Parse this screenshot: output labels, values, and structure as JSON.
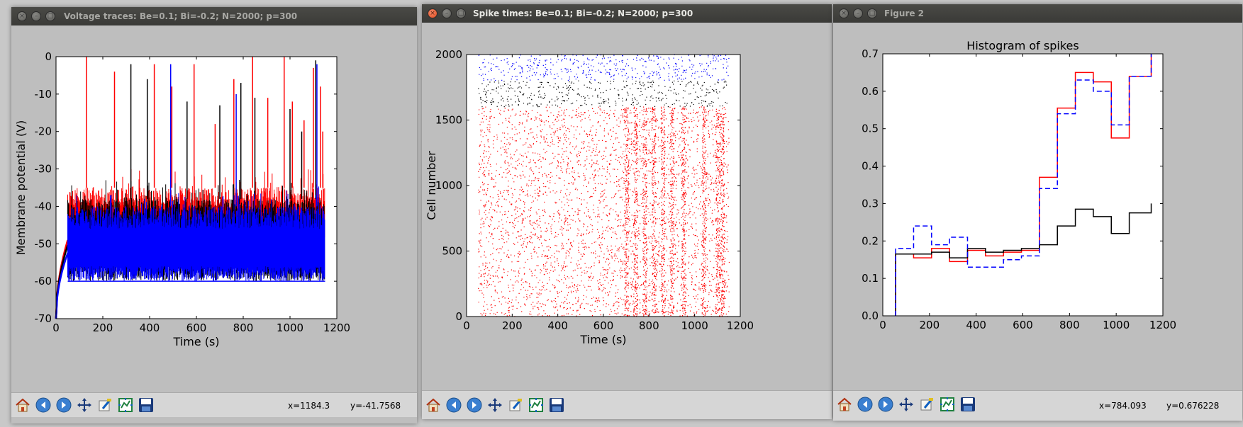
{
  "windows": [
    {
      "title": "Voltage traces: Be=0.1; Bi=-0.2; N=2000; p=300",
      "status": {
        "x": "x=1184.3",
        "y": "y=-41.7568"
      },
      "plot": {
        "title": "",
        "xlabel": "Time (s)",
        "ylabel": "Membrane potential (V)",
        "xticks": [
          "0",
          "200",
          "400",
          "600",
          "800",
          "1000",
          "1200"
        ],
        "yticks": [
          "0",
          "-10",
          "-20",
          "-30",
          "-40",
          "-50",
          "-60",
          "-70"
        ]
      }
    },
    {
      "title": "Spike times: Be=0.1; Bi=-0.2; N=2000; p=300",
      "status": {
        "x": "",
        "y": ""
      },
      "plot": {
        "title": "",
        "xlabel": "Time (s)",
        "ylabel": "Cell number",
        "xticks": [
          "0",
          "200",
          "400",
          "600",
          "800",
          "1000",
          "1200"
        ],
        "yticks": [
          "0",
          "500",
          "1000",
          "1500",
          "2000"
        ]
      }
    },
    {
      "title": "Figure 2",
      "status": {
        "x": "x=784.093",
        "y": "y=0.676228"
      },
      "plot": {
        "title": "Histogram of spikes",
        "xlabel": "",
        "ylabel": "",
        "xticks": [
          "0",
          "200",
          "400",
          "600",
          "800",
          "1000",
          "1200"
        ],
        "yticks": [
          "0.0",
          "0.1",
          "0.2",
          "0.3",
          "0.4",
          "0.5",
          "0.6",
          "0.7"
        ]
      }
    }
  ],
  "toolbar_icons": [
    "home-icon",
    "back-icon",
    "forward-icon",
    "pan-icon",
    "zoom-icon",
    "configure-subplots-icon",
    "save-icon"
  ],
  "colors": {
    "red": "#ff0000",
    "black": "#000000",
    "blue": "#0000ff",
    "titlebar": "#3c3c3a",
    "window_bg": "#bebebe"
  },
  "chart_data": [
    {
      "type": "line",
      "title": "",
      "xlabel": "Time (s)",
      "ylabel": "Membrane potential (V)",
      "xlim": [
        0,
        1200
      ],
      "ylim": [
        -70,
        0
      ],
      "grid": false,
      "series": [
        {
          "color": "#ff0000",
          "x": [
            0,
            50,
            1150
          ],
          "band": [
            [
              -65,
              -40
            ],
            [
              -52,
              -35
            ]
          ],
          "spikes": [
            [
              130,
              0
            ],
            [
              250,
              -4
            ],
            [
              420,
              -2
            ],
            [
              495,
              -8
            ],
            [
              590,
              -2
            ],
            [
              680,
              -18
            ],
            [
              760,
              -6
            ],
            [
              840,
              0
            ],
            [
              905,
              -11
            ],
            [
              975,
              0
            ],
            [
              1010,
              -12
            ],
            [
              1060,
              -17
            ],
            [
              1100,
              -3
            ],
            [
              1130,
              -8
            ],
            [
              1140,
              -20
            ]
          ]
        },
        {
          "color": "#000000",
          "x": [
            0,
            50,
            1150
          ],
          "band": [
            [
              -66,
              -42
            ],
            [
              -60,
              -38
            ]
          ],
          "spikes": [
            [
              320,
              -2
            ],
            [
              390,
              -6
            ],
            [
              560,
              -12
            ],
            [
              700,
              -13
            ],
            [
              790,
              -7
            ],
            [
              850,
              -11
            ],
            [
              1000,
              -14
            ],
            [
              1050,
              -20
            ],
            [
              1110,
              -1
            ]
          ]
        },
        {
          "color": "#0000ff",
          "x": [
            0,
            50,
            1150
          ],
          "band": [
            [
              -67,
              -45
            ],
            [
              -60,
              -40
            ]
          ],
          "spikes": [
            [
              490,
              -2
            ],
            [
              770,
              -10
            ],
            [
              1115,
              -2
            ]
          ]
        }
      ]
    },
    {
      "type": "scatter",
      "title": "",
      "xlabel": "Time (s)",
      "ylabel": "Cell number",
      "xlim": [
        0,
        1200
      ],
      "ylim": [
        0,
        2000
      ],
      "grid": false,
      "series": [
        {
          "color": "#ff0000",
          "cells": [
            0,
            1600
          ],
          "t_range": [
            50,
            1150
          ],
          "bursts": [
            700,
            740,
            780,
            820,
            860,
            900,
            950,
            1040,
            1100,
            1120
          ]
        },
        {
          "color": "#000000",
          "cells": [
            1600,
            1800
          ],
          "t_range": [
            50,
            1150
          ],
          "bursts": []
        },
        {
          "color": "#0000ff",
          "cells": [
            1800,
            2000
          ],
          "t_range": [
            50,
            1150
          ],
          "bursts": []
        }
      ]
    },
    {
      "type": "step",
      "title": "Histogram of spikes",
      "xlabel": "",
      "ylabel": "",
      "xlim": [
        0,
        1200
      ],
      "ylim": [
        0,
        0.7
      ],
      "grid": false,
      "bins": [
        55,
        132,
        209,
        286,
        363,
        440,
        517,
        594,
        671,
        748,
        825,
        902,
        979,
        1056,
        1150
      ],
      "series": [
        {
          "color": "#ff0000",
          "dash": false,
          "values": [
            0.165,
            0.155,
            0.18,
            0.145,
            0.175,
            0.16,
            0.17,
            0.175,
            0.37,
            0.555,
            0.65,
            0.625,
            0.475,
            0.64,
            0.7
          ]
        },
        {
          "color": "#000000",
          "dash": false,
          "values": [
            0.165,
            0.165,
            0.17,
            0.155,
            0.18,
            0.17,
            0.175,
            0.18,
            0.19,
            0.24,
            0.285,
            0.265,
            0.22,
            0.275,
            0.3
          ]
        },
        {
          "color": "#0000ff",
          "dash": true,
          "values": [
            0.18,
            0.24,
            0.19,
            0.21,
            0.13,
            0.13,
            0.15,
            0.16,
            0.34,
            0.54,
            0.63,
            0.6,
            0.51,
            0.64,
            0.7
          ]
        }
      ]
    }
  ]
}
